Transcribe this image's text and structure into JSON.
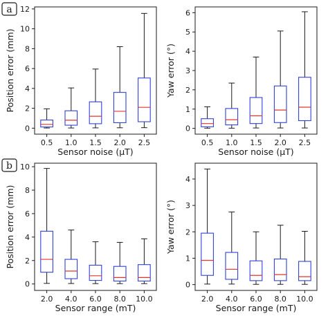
{
  "panel_labels": [
    "a",
    "b"
  ],
  "chart_data": [
    {
      "type": "box",
      "panel": "a",
      "xlabel": "Sensor noise (μT)",
      "ylabel": "Position error (mm)",
      "categories": [
        "0.5",
        "1.0",
        "1.5",
        "2.0",
        "2.5"
      ],
      "ylim": [
        -0.6,
        12.2
      ],
      "yticks": [
        0,
        2,
        4,
        6,
        8,
        10,
        12
      ],
      "boxes": [
        {
          "whisker_low": 0.02,
          "q1": 0.12,
          "median": 0.38,
          "q3": 0.82,
          "whisker_high": 1.95
        },
        {
          "whisker_low": 0.02,
          "q1": 0.3,
          "median": 0.8,
          "q3": 1.75,
          "whisker_high": 4.05
        },
        {
          "whisker_low": 0.03,
          "q1": 0.45,
          "median": 1.2,
          "q3": 2.65,
          "whisker_high": 5.95
        },
        {
          "whisker_low": 0.04,
          "q1": 0.55,
          "median": 1.7,
          "q3": 3.6,
          "whisker_high": 8.2
        },
        {
          "whisker_low": 0.05,
          "q1": 0.65,
          "median": 2.1,
          "q3": 5.05,
          "whisker_high": 11.55
        }
      ]
    },
    {
      "type": "box",
      "panel": "a",
      "xlabel": "Sensor noise (μT)",
      "ylabel": "Yaw error (°)",
      "categories": [
        "0.5",
        "1.0",
        "1.5",
        "2.0",
        "2.5"
      ],
      "ylim": [
        -0.3,
        6.3
      ],
      "yticks": [
        0,
        1,
        2,
        3,
        4,
        5,
        6
      ],
      "boxes": [
        {
          "whisker_low": 0.01,
          "q1": 0.08,
          "median": 0.25,
          "q3": 0.5,
          "whisker_high": 1.12
        },
        {
          "whisker_low": 0.01,
          "q1": 0.18,
          "median": 0.45,
          "q3": 1.03,
          "whisker_high": 2.35
        },
        {
          "whisker_low": 0.02,
          "q1": 0.25,
          "median": 0.65,
          "q3": 1.6,
          "whisker_high": 3.7
        },
        {
          "whisker_low": 0.02,
          "q1": 0.3,
          "median": 0.95,
          "q3": 2.2,
          "whisker_high": 5.05
        },
        {
          "whisker_low": 0.02,
          "q1": 0.4,
          "median": 1.1,
          "q3": 2.65,
          "whisker_high": 6.05
        }
      ]
    },
    {
      "type": "box",
      "panel": "b",
      "xlabel": "Sensor range (mT)",
      "ylabel": "Position error (mm)",
      "categories": [
        "2.0",
        "4.0",
        "6.0",
        "8.0",
        "10.0"
      ],
      "ylim": [
        -0.55,
        10.3
      ],
      "yticks": [
        0,
        2,
        4,
        6,
        8,
        10
      ],
      "boxes": [
        {
          "whisker_low": 0.05,
          "q1": 1.0,
          "median": 2.1,
          "q3": 4.5,
          "whisker_high": 9.85
        },
        {
          "whisker_low": 0.04,
          "q1": 0.45,
          "median": 1.1,
          "q3": 2.1,
          "whisker_high": 4.6
        },
        {
          "whisker_low": 0.03,
          "q1": 0.3,
          "median": 0.7,
          "q3": 1.6,
          "whisker_high": 3.6
        },
        {
          "whisker_low": 0.03,
          "q1": 0.25,
          "median": 0.55,
          "q3": 1.5,
          "whisker_high": 3.55
        },
        {
          "whisker_low": 0.03,
          "q1": 0.25,
          "median": 0.55,
          "q3": 1.65,
          "whisker_high": 3.85
        }
      ]
    },
    {
      "type": "box",
      "panel": "b",
      "xlabel": "Sensor range (mT)",
      "ylabel": "Yaw error (°)",
      "categories": [
        "2.0",
        "4.0",
        "6.0",
        "8.0",
        "10.0"
      ],
      "ylim": [
        -0.22,
        4.6
      ],
      "yticks": [
        0,
        1,
        2,
        3,
        4
      ],
      "boxes": [
        {
          "whisker_low": 0.02,
          "q1": 0.35,
          "median": 0.92,
          "q3": 1.95,
          "whisker_high": 4.38
        },
        {
          "whisker_low": 0.02,
          "q1": 0.2,
          "median": 0.58,
          "q3": 1.22,
          "whisker_high": 2.75
        },
        {
          "whisker_low": 0.01,
          "q1": 0.15,
          "median": 0.35,
          "q3": 0.9,
          "whisker_high": 2.0
        },
        {
          "whisker_low": 0.01,
          "q1": 0.15,
          "median": 0.38,
          "q3": 0.97,
          "whisker_high": 2.25
        },
        {
          "whisker_low": 0.01,
          "q1": 0.15,
          "median": 0.3,
          "q3": 0.88,
          "whisker_high": 2.02
        }
      ]
    }
  ],
  "colors": {
    "box": "#3040d8",
    "median": "#e0342c",
    "whisker": "#1a1a1a",
    "axes": "#1a1a1a",
    "background": "#ffffff"
  }
}
